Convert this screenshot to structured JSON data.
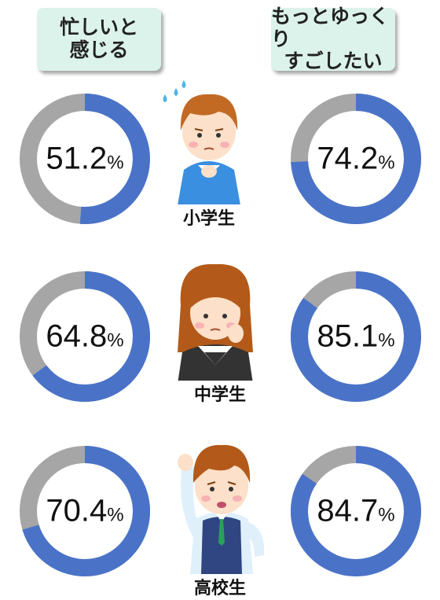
{
  "headers": {
    "left": [
      "忙しいと",
      "感じる"
    ],
    "right": [
      "もっとゆっくり",
      "すごしたい"
    ]
  },
  "chart_data": {
    "type": "donut",
    "unit": "%",
    "series": [
      {
        "name": "忙しいと感じる",
        "values": [
          51.2,
          64.8,
          70.4
        ]
      },
      {
        "name": "もっとゆっくりすごしたい",
        "values": [
          74.2,
          85.1,
          84.7
        ]
      }
    ],
    "categories": [
      "小学生",
      "中学生",
      "高校生"
    ],
    "max": 100
  },
  "colors": {
    "value_arc": "#4a73c8",
    "remainder_arc": "#a6a6a6",
    "header_bg": "#dcf3ec"
  },
  "characters": [
    "boy-icon",
    "girl-icon",
    "boy-icon"
  ]
}
